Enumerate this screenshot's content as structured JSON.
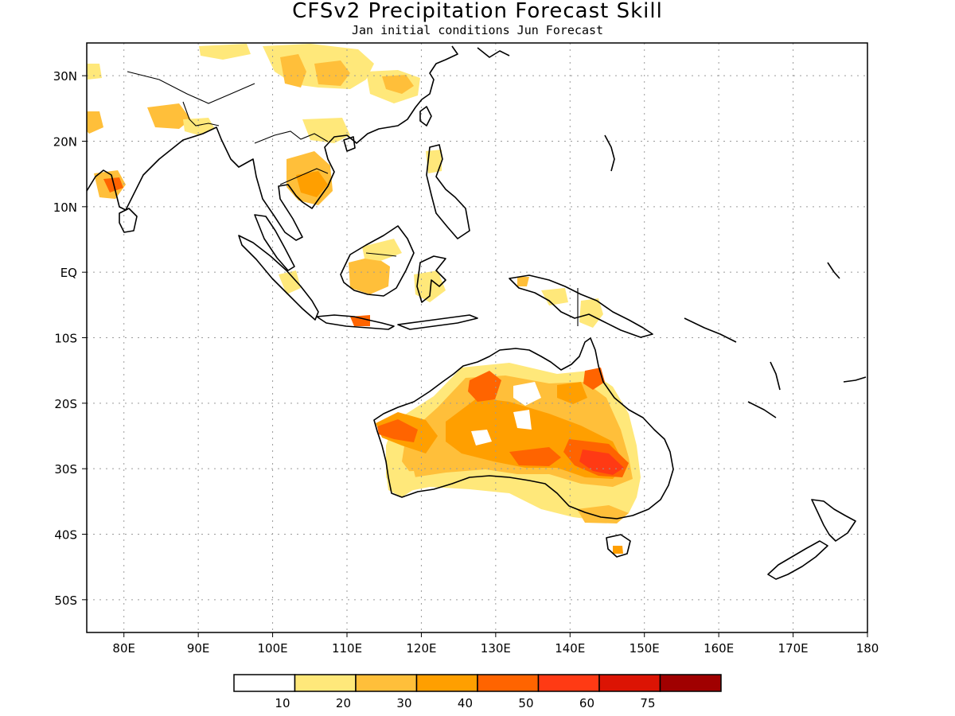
{
  "title": "CFSv2 Precipitation Forecast Skill",
  "subtitle": "Jan initial conditions  Jun Forecast",
  "map": {
    "lon_range": [
      75,
      180
    ],
    "lat_range": [
      -55,
      35
    ],
    "lon_ticks": [
      {
        "value": 80,
        "label": "80E"
      },
      {
        "value": 90,
        "label": "90E"
      },
      {
        "value": 100,
        "label": "100E"
      },
      {
        "value": 110,
        "label": "110E"
      },
      {
        "value": 120,
        "label": "120E"
      },
      {
        "value": 130,
        "label": "130E"
      },
      {
        "value": 140,
        "label": "140E"
      },
      {
        "value": 150,
        "label": "150E"
      },
      {
        "value": 160,
        "label": "160E"
      },
      {
        "value": 170,
        "label": "170E"
      },
      {
        "value": 180,
        "label": "180"
      }
    ],
    "lat_ticks": [
      {
        "value": 30,
        "label": "30N"
      },
      {
        "value": 20,
        "label": "20N"
      },
      {
        "value": 10,
        "label": "10N"
      },
      {
        "value": 0,
        "label": "EQ"
      },
      {
        "value": -10,
        "label": "10S"
      },
      {
        "value": -20,
        "label": "20S"
      },
      {
        "value": -30,
        "label": "30S"
      },
      {
        "value": -40,
        "label": "40S"
      },
      {
        "value": -50,
        "label": "50S"
      }
    ],
    "grid": true
  },
  "colorbar": {
    "colors": [
      "#ffffff",
      "#ffe87a",
      "#ffbf3a",
      "#ff9f00",
      "#ff6400",
      "#ff3a14",
      "#dc1404",
      "#a00000"
    ],
    "labels": [
      "10",
      "20",
      "30",
      "40",
      "50",
      "60",
      "75"
    ]
  }
}
